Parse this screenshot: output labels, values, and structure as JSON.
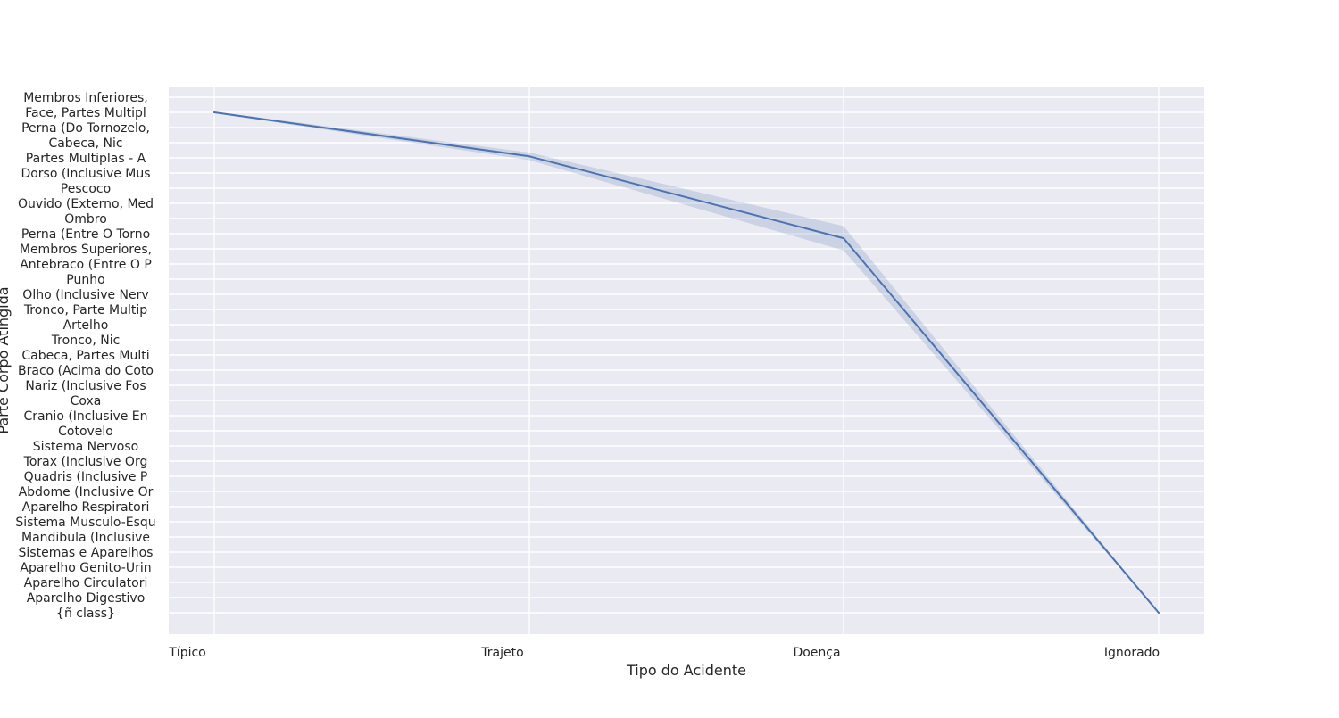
{
  "colors": {
    "plot_background": "#eaeaf2",
    "grid": "#ffffff",
    "line": "#4c72b0",
    "band": "#4c72b0",
    "text": "#262626"
  },
  "chart_data": {
    "type": "line",
    "style": "seaborn darkgrid",
    "title": "",
    "xlabel": "Tipo do Acidente",
    "ylabel": "Parte Corpo Atingida",
    "grid": true,
    "legend": "none",
    "categories": [
      "Típico",
      "Trajeto",
      "Doença",
      "Ignorado"
    ],
    "y_categories": [
      "Membros Inferiores, ",
      "Face, Partes Multipl",
      "Perna (Do Tornozelo,",
      "Cabeca, Nic",
      "Partes Multiplas - A",
      "Dorso (Inclusive Mus",
      "Pescoco",
      "Ouvido (Externo, Med",
      "Ombro",
      "Perna (Entre O Torno",
      "Membros Superiores, ",
      "Antebraco (Entre O P",
      "Punho",
      "Olho (Inclusive Nerv",
      "Tronco, Parte Multip",
      "Artelho",
      "Tronco, Nic",
      "Cabeca, Partes Multi",
      "Braco (Acima do Coto",
      "Nariz (Inclusive Fos",
      "Coxa",
      "Cranio (Inclusive En",
      "Cotovelo",
      "Sistema Nervoso",
      "Torax (Inclusive Org",
      "Quadris (Inclusive P",
      "Abdome (Inclusive Or",
      "Aparelho Respiratori",
      "Sistema Musculo-Esqu",
      "Mandibula (Inclusive",
      "Sistemas e Aparelhos",
      "Aparelho Genito-Urin",
      "Aparelho Circulatori",
      "Aparelho Digestivo ",
      "{ñ class}"
    ],
    "series": [
      {
        "values": [
          1.0,
          3.9,
          9.3,
          34.0
        ],
        "ci_low": [
          0.95,
          3.65,
          8.5,
          34.0
        ],
        "ci_high": [
          1.05,
          4.15,
          10.1,
          34.0
        ]
      }
    ]
  }
}
